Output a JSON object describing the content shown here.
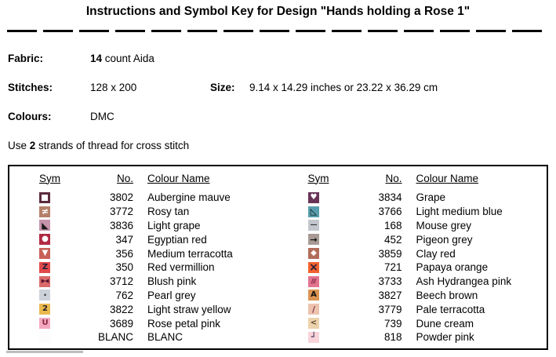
{
  "page": {
    "title": "Instructions and Symbol Key for Design \"Hands holding a Rose 1\""
  },
  "info": {
    "fabric": {
      "label": "Fabric:",
      "bold": "14",
      "rest": " count Aida"
    },
    "stitches": {
      "label": "Stitches:",
      "value": "128 x 200"
    },
    "size": {
      "label": "Size:",
      "value": "9.14 x 14.29 inches or 23.22 x 36.29 cm"
    },
    "colours": {
      "label": "Colours:",
      "value": "DMC"
    },
    "strands": {
      "prefix": "Use ",
      "bold": "2",
      "suffix": " strands of thread for cross stitch"
    }
  },
  "key": {
    "headers": {
      "sym": "Sym",
      "no": "No.",
      "name": "Colour Name"
    },
    "columns": [
      {
        "rows": [
          {
            "no": "3802",
            "name": "Aubergine mauve",
            "sym": {
              "icon": "open-square",
              "glyph": "",
              "bg": "#ffffff",
              "fg": "#5c2b3d",
              "border": "#5c2b3d"
            }
          },
          {
            "no": "3772",
            "name": "Rosy tan",
            "sym": {
              "icon": "not-equal",
              "glyph": "≠",
              "bg": "#b5806a",
              "fg": "#ffffff",
              "fs": 11
            }
          },
          {
            "no": "3836",
            "name": "Light grape",
            "sym": {
              "icon": "lower-left-triangle",
              "glyph": "◣",
              "bg": "#c593ab",
              "fg": "#1a1a1a",
              "fs": 11
            }
          },
          {
            "no": "347",
            "name": "Egyptian red",
            "sym": {
              "icon": "filled-circle",
              "glyph": "●",
              "bg": "#b12a44",
              "fg": "#ffffff",
              "fs": 10
            }
          },
          {
            "no": "356",
            "name": "Medium terracotta",
            "sym": {
              "icon": "down-triangle",
              "glyph": "▼",
              "bg": "#c76159",
              "fg": "#ffffff",
              "fs": 10
            }
          },
          {
            "no": "350",
            "name": "Red vermillion",
            "sym": {
              "icon": "letter-z",
              "glyph": "Z",
              "bg": "#e14a4a",
              "fg": "#1d1d3a",
              "fs": 10
            }
          },
          {
            "no": "3712",
            "name": "Blush pink",
            "sym": {
              "icon": "bowtie",
              "glyph": "▶◀",
              "bg": "#d96a6a",
              "fg": "#5a1430",
              "fs": 7
            }
          },
          {
            "no": "762",
            "name": "Pearl grey",
            "sym": {
              "icon": "small-dot",
              "glyph": "·",
              "bg": "#ccd2d9",
              "fg": "#333333",
              "fs": 12
            }
          },
          {
            "no": "3822",
            "name": "Light straw yellow",
            "sym": {
              "icon": "digit-2",
              "glyph": "2",
              "bg": "#eaba50",
              "fg": "#222222",
              "fs": 10
            }
          },
          {
            "no": "3689",
            "name": "Rose petal pink",
            "sym": {
              "icon": "letter-u",
              "glyph": "U",
              "bg": "#f2a9c0",
              "fg": "#8c2540",
              "fs": 10
            }
          },
          {
            "no": "BLANC",
            "name": "BLANC",
            "sym": {
              "icon": "blank-white-square",
              "glyph": "",
              "bg": "#fcfcfc",
              "fg": "#000000"
            }
          }
        ]
      },
      {
        "rows": [
          {
            "no": "3834",
            "name": "Grape",
            "sym": {
              "icon": "heart",
              "glyph": "♥",
              "bg": "#693356",
              "fg": "#ffffff",
              "fs": 10
            }
          },
          {
            "no": "3766",
            "name": "Light medium blue",
            "sym": {
              "icon": "lower-left-triangle-outline",
              "glyph": "◺",
              "bg": "#579dad",
              "fg": "#111111",
              "fs": 11
            }
          },
          {
            "no": "168",
            "name": "Mouse grey",
            "sym": {
              "icon": "dash",
              "glyph": "—",
              "bg": "#c3c7cd",
              "fg": "#333333",
              "fs": 9
            }
          },
          {
            "no": "452",
            "name": "Pigeon grey",
            "sym": {
              "icon": "right-arrow",
              "glyph": "→",
              "bg": "#a89a95",
              "fg": "#111111",
              "fs": 11
            }
          },
          {
            "no": "3859",
            "name": "Clay red",
            "sym": {
              "icon": "filled-diamond",
              "glyph": "◆",
              "bg": "#b26d5a",
              "fg": "#ffffff",
              "fs": 10
            }
          },
          {
            "no": "721",
            "name": "Papaya orange",
            "sym": {
              "icon": "multiply-x",
              "glyph": "×",
              "bg": "#f2612f",
              "fg": "#1d1d3a",
              "fs": 14
            }
          },
          {
            "no": "3733",
            "name": "Ash Hydrangea pink",
            "sym": {
              "icon": "triple-slash",
              "glyph": "///",
              "bg": "#e37490",
              "fg": "#6e1f3d",
              "fs": 8
            }
          },
          {
            "no": "3827",
            "name": "Beech brown",
            "sym": {
              "icon": "letter-a",
              "glyph": "A",
              "bg": "#dc9454",
              "fg": "#111111",
              "fs": 10
            }
          },
          {
            "no": "3779",
            "name": "Pale terracotta",
            "sym": {
              "icon": "slash",
              "glyph": "/",
              "bg": "#edc3ae",
              "fg": "#7a3b4a",
              "fs": 11
            }
          },
          {
            "no": "739",
            "name": "Dune cream",
            "sym": {
              "icon": "less-than",
              "glyph": "<",
              "bg": "#ecd2ab",
              "fg": "#5a4630",
              "fs": 10
            }
          },
          {
            "no": "818",
            "name": "Powder pink",
            "sym": {
              "icon": "corner-up-left",
              "glyph": "┘",
              "bg": "#f8d3da",
              "fg": "#14143c",
              "fs": 11
            }
          }
        ]
      }
    ]
  }
}
